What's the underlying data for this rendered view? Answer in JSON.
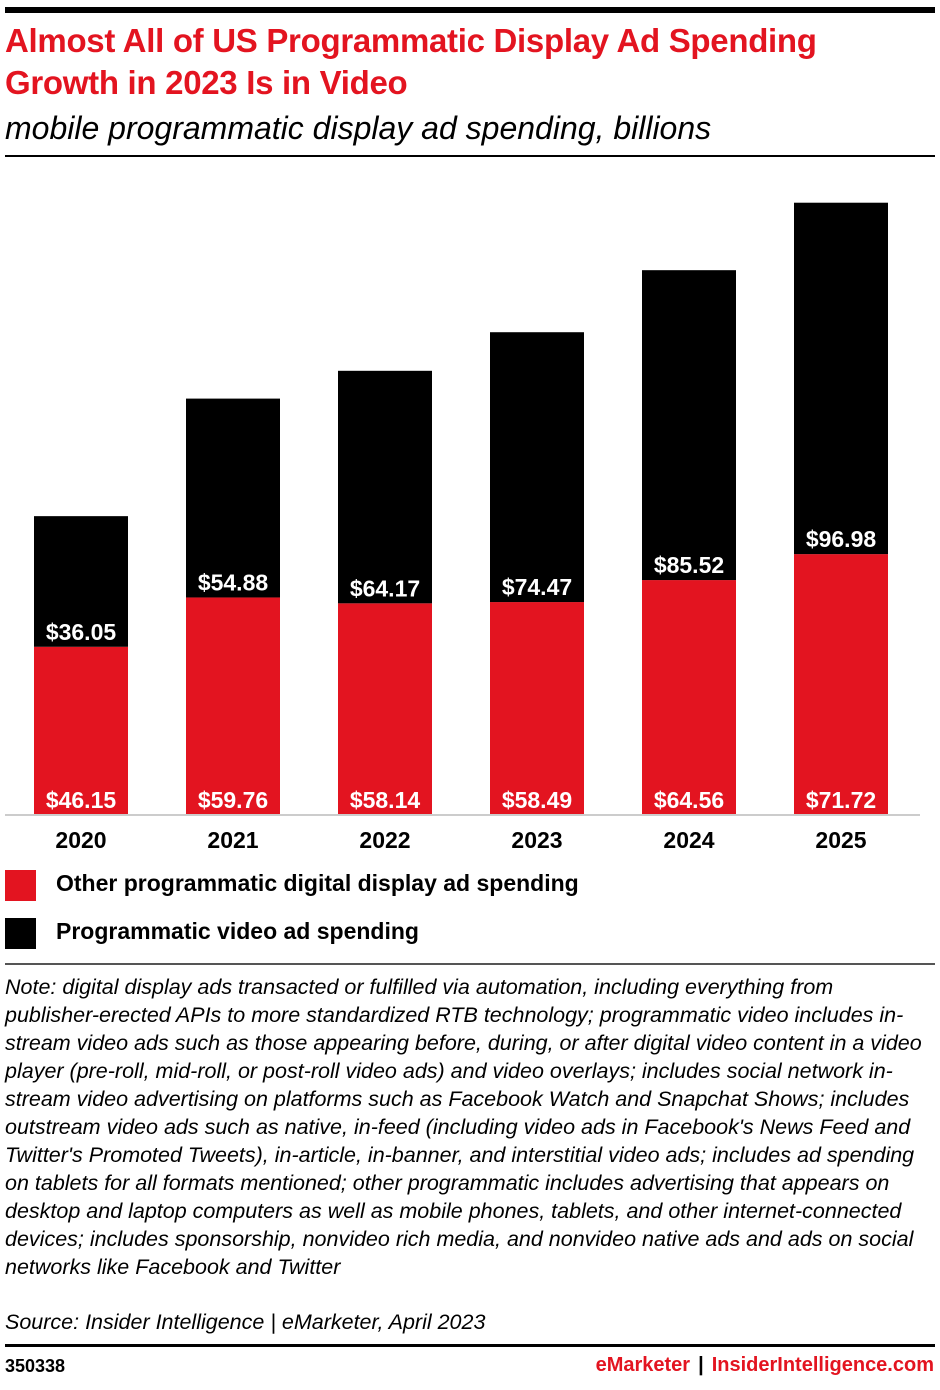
{
  "title": "Almost All of US Programmatic Display Ad Spending Growth in 2023 Is in Video",
  "subtitle": "mobile programmatic display ad spending, billions",
  "colors": {
    "accent": "#e31420",
    "video": "#000000",
    "other": "#e31420"
  },
  "legend": [
    {
      "label": "Other programmatic digital display ad spending",
      "color": "#e31420"
    },
    {
      "label": "Programmatic video ad spending",
      "color": "#000000"
    }
  ],
  "chart_data": {
    "type": "bar",
    "stacked": true,
    "categories": [
      "2020",
      "2021",
      "2022",
      "2023",
      "2024",
      "2025"
    ],
    "series": [
      {
        "name": "Other programmatic digital display ad spending",
        "color": "#e31420",
        "values": [
          46.15,
          59.76,
          58.14,
          58.49,
          64.56,
          71.72
        ],
        "labels": [
          "$46.15",
          "$59.76",
          "$58.14",
          "$58.49",
          "$64.56",
          "$71.72"
        ]
      },
      {
        "name": "Programmatic video ad spending",
        "color": "#000000",
        "values": [
          36.05,
          54.88,
          64.17,
          74.47,
          85.52,
          96.98
        ],
        "labels": [
          "$36.05",
          "$54.88",
          "$64.17",
          "$74.47",
          "$85.52",
          "$96.98"
        ]
      }
    ],
    "ylim": [
      0,
      170
    ],
    "grid": false,
    "legend_position": "bottom"
  },
  "note": "Note: digital display ads transacted or fulfilled via automation, including everything from publisher-erected APIs to more standardized RTB technology; programmatic video includes in-stream video ads such as those appearing before, during, or after digital video content in a video player (pre-roll, mid-roll, or post-roll video ads) and video overlays; includes social network in-stream video advertising on platforms such as Facebook Watch and Snapchat Shows; includes outstream video ads such as native, in-feed (including video ads in Facebook's News Feed and Twitter's Promoted Tweets), in-article, in-banner, and interstitial video ads; includes ad spending on tablets for all formats mentioned; other programmatic includes advertising that appears on desktop and laptop computers as well as mobile phones, tablets, and other internet-connected devices; includes sponsorship, nonvideo rich media, and nonvideo native ads and ads on social networks like Facebook and Twitter",
  "source": "Source: Insider Intelligence | eMarketer, April 2023",
  "footer": {
    "chart_id": "350338",
    "brand_primary": "eMarketer",
    "separator": "|",
    "brand_secondary": "InsiderIntelligence.com"
  }
}
